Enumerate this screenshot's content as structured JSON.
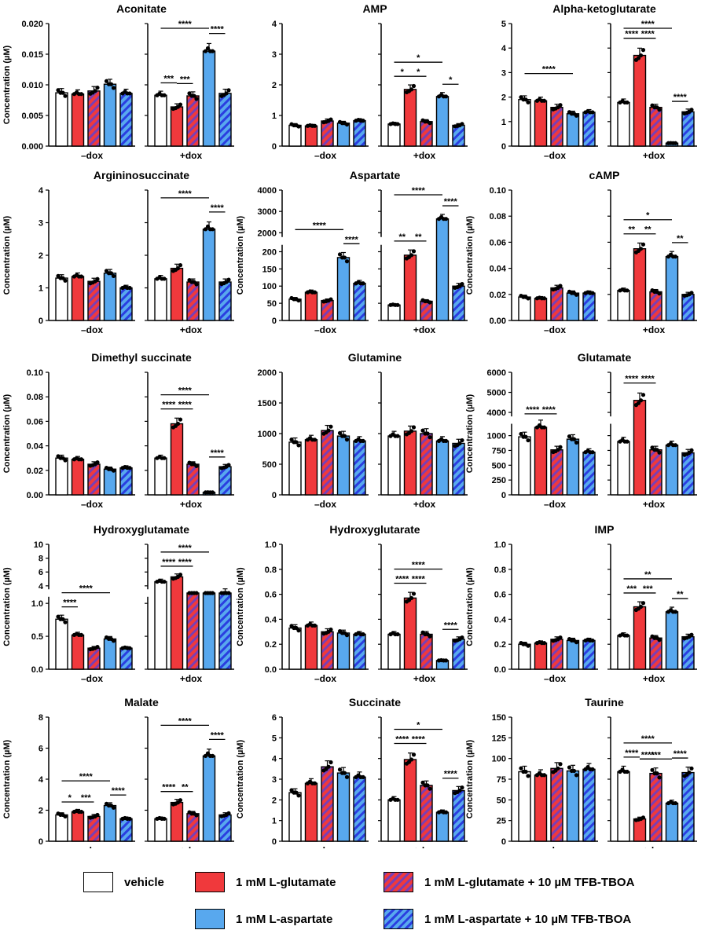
{
  "colors": {
    "vehicle": "#ffffff",
    "glutamate": "#f0393c",
    "aspartate": "#58a8ee",
    "hatch_glu": "#f0393c",
    "hatch_asp": "#58a8ee",
    "hatch_stripe_glu": "#7a3fb4",
    "hatch_stripe_asp": "#2a3ee0"
  },
  "legend": {
    "vehicle": "vehicle",
    "glutamate": "1 mM L-glutamate",
    "glu_tfb": "1 mM L-glutamate + 10 µM TFB-TBOA",
    "aspartate": "1 mM L-aspartate",
    "asp_tfb": "1 mM L-aspartate + 10 µM TFB-TBOA"
  },
  "chart_data": [
    {
      "type": "bar",
      "title": "Aconitate",
      "ylabel": "Concentration (µM)",
      "ylim": [
        0,
        0.02
      ],
      "yticks": [
        "0.000",
        "0.005",
        "0.010",
        "0.015",
        "0.020"
      ],
      "yvals": [
        0,
        0.005,
        0.01,
        0.015,
        0.02
      ],
      "groups": [
        "–dox",
        "+dox"
      ],
      "series": [
        "vehicle",
        "1 mM L-glutamate",
        "1 mM L-glutamate + 10 µM TFB-TBOA",
        "1 mM L-aspartate",
        "1 mM L-aspartate + 10 µM TFB-TBOA"
      ],
      "values": [
        [
          0.0087,
          0.0085,
          0.009,
          0.0101,
          0.0086
        ],
        [
          0.0083,
          0.0064,
          0.0082,
          0.0155,
          0.0086
        ]
      ],
      "sig": [
        {
          "g": 1,
          "a": 0,
          "b": 1,
          "t": "***"
        },
        {
          "g": 1,
          "a": 1,
          "b": 2,
          "t": "***"
        },
        {
          "g": 1,
          "a": 0,
          "b": 3,
          "t": "****"
        },
        {
          "g": 1,
          "a": 3,
          "b": 4,
          "t": "****"
        }
      ]
    },
    {
      "type": "bar",
      "title": "AMP",
      "ylabel": "",
      "ylim": [
        0,
        4
      ],
      "yticks": [
        "0",
        "1",
        "2",
        "3",
        "4"
      ],
      "yvals": [
        0,
        1,
        2,
        3,
        4
      ],
      "groups": [
        "–dox",
        "+dox"
      ],
      "values": [
        [
          0.68,
          0.66,
          0.82,
          0.75,
          0.83
        ],
        [
          0.72,
          1.85,
          0.8,
          1.62,
          0.68
        ]
      ],
      "sig": [
        {
          "g": 1,
          "a": 0,
          "b": 1,
          "t": "*"
        },
        {
          "g": 1,
          "a": 1,
          "b": 2,
          "t": "*"
        },
        {
          "g": 1,
          "a": 0,
          "b": 3,
          "t": "*"
        },
        {
          "g": 1,
          "a": 3,
          "b": 4,
          "t": "*"
        }
      ]
    },
    {
      "type": "bar",
      "title": "Alpha-ketoglutarate",
      "ylabel": "",
      "ylim": [
        0,
        5
      ],
      "yticks": [
        "0",
        "1",
        "2",
        "3",
        "4",
        "5"
      ],
      "yvals": [
        0,
        1,
        2,
        3,
        4,
        5
      ],
      "groups": [
        "–dox",
        "+dox"
      ],
      "values": [
        [
          1.9,
          1.85,
          1.58,
          1.32,
          1.38
        ],
        [
          1.78,
          3.7,
          1.58,
          0.12,
          1.4
        ]
      ],
      "sig": [
        {
          "g": 0,
          "a": 0,
          "b": 3,
          "t": "****"
        },
        {
          "g": 1,
          "a": 0,
          "b": 1,
          "t": "****"
        },
        {
          "g": 1,
          "a": 1,
          "b": 2,
          "t": "****"
        },
        {
          "g": 1,
          "a": 0,
          "b": 3,
          "t": "****"
        },
        {
          "g": 1,
          "a": 3,
          "b": 4,
          "t": "****"
        }
      ]
    },
    {
      "type": "bar",
      "title": "Argininosuccinate",
      "ylabel": "Concentration (µM)",
      "ylim": [
        0,
        4
      ],
      "yticks": [
        "0",
        "1",
        "2",
        "3",
        "4"
      ],
      "yvals": [
        0,
        1,
        2,
        3,
        4
      ],
      "groups": [
        "–dox",
        "+dox"
      ],
      "values": [
        [
          1.3,
          1.35,
          1.2,
          1.45,
          1.0
        ],
        [
          1.28,
          1.6,
          1.18,
          2.8,
          1.18
        ]
      ],
      "sig": [
        {
          "g": 1,
          "a": 0,
          "b": 3,
          "t": "****"
        },
        {
          "g": 1,
          "a": 3,
          "b": 4,
          "t": "****"
        }
      ]
    },
    {
      "type": "bar",
      "title": "Aspartate",
      "ylabel": "Concentration (µM)",
      "ylim": [
        0,
        4000
      ],
      "yticks": [
        "0",
        "50",
        "100",
        "150",
        "200",
        "2000",
        "3000",
        "4000"
      ],
      "yvals": [
        0,
        50,
        100,
        150,
        200,
        2000,
        3000,
        4000
      ],
      "groups": [
        "–dox",
        "+dox"
      ],
      "broken_axis": {
        "low": [
          0,
          220
        ],
        "high": [
          1800,
          4000
        ]
      },
      "values": [
        [
          62,
          82,
          58,
          183,
          108
        ],
        [
          45,
          190,
          56,
          2650,
          100
        ]
      ],
      "sig": [
        {
          "g": 0,
          "a": 0,
          "b": 3,
          "t": "****"
        },
        {
          "g": 0,
          "a": 3,
          "b": 4,
          "t": "****"
        },
        {
          "g": 1,
          "a": 0,
          "b": 1,
          "t": "**"
        },
        {
          "g": 1,
          "a": 1,
          "b": 2,
          "t": "**"
        },
        {
          "g": 1,
          "a": 0,
          "b": 3,
          "t": "****"
        },
        {
          "g": 1,
          "a": 3,
          "b": 4,
          "t": "****"
        }
      ]
    },
    {
      "type": "bar",
      "title": "cAMP",
      "ylabel": "Concentration (µM)",
      "ylim": [
        0,
        0.1
      ],
      "yticks": [
        "0.00",
        "0.02",
        "0.04",
        "0.06",
        "0.08",
        "0.10"
      ],
      "yvals": [
        0,
        0.02,
        0.04,
        0.06,
        0.08,
        0.1
      ],
      "groups": [
        "–dox",
        "+dox"
      ],
      "values": [
        [
          0.018,
          0.017,
          0.025,
          0.021,
          0.021
        ],
        [
          0.023,
          0.055,
          0.022,
          0.049,
          0.02
        ]
      ],
      "sig": [
        {
          "g": 1,
          "a": 0,
          "b": 1,
          "t": "**"
        },
        {
          "g": 1,
          "a": 1,
          "b": 2,
          "t": "**"
        },
        {
          "g": 1,
          "a": 0,
          "b": 3,
          "t": "*"
        },
        {
          "g": 1,
          "a": 3,
          "b": 4,
          "t": "**"
        }
      ]
    },
    {
      "type": "bar",
      "title": "Dimethyl succinate",
      "ylabel": "Concentration (µM)",
      "ylim": [
        0,
        0.1
      ],
      "yticks": [
        "0.00",
        "0.02",
        "0.04",
        "0.06",
        "0.08",
        "0.10"
      ],
      "yvals": [
        0,
        0.02,
        0.04,
        0.06,
        0.08,
        0.1
      ],
      "groups": [
        "–dox",
        "+dox"
      ],
      "values": [
        [
          0.03,
          0.029,
          0.025,
          0.021,
          0.022
        ],
        [
          0.03,
          0.058,
          0.025,
          0.002,
          0.023
        ]
      ],
      "sig": [
        {
          "g": 1,
          "a": 0,
          "b": 1,
          "t": "****"
        },
        {
          "g": 1,
          "a": 1,
          "b": 2,
          "t": "****"
        },
        {
          "g": 1,
          "a": 0,
          "b": 3,
          "t": "****"
        },
        {
          "g": 1,
          "a": 3,
          "b": 4,
          "t": "****"
        }
      ]
    },
    {
      "type": "bar",
      "title": "Glutamine",
      "ylabel": "",
      "ylim": [
        0,
        2000
      ],
      "yticks": [
        "0",
        "500",
        "1000",
        "1500",
        "2000"
      ],
      "yvals": [
        0,
        500,
        1000,
        1500,
        2000
      ],
      "groups": [
        "–dox",
        "+dox"
      ],
      "values": [
        [
          860,
          900,
          1050,
          960,
          880
        ],
        [
          960,
          1040,
          1000,
          880,
          840
        ]
      ],
      "sig": []
    },
    {
      "type": "bar",
      "title": "Glutamate",
      "ylabel": "Concentration (µM)",
      "ylim": [
        0,
        6000
      ],
      "yticks": [
        "0",
        "250",
        "500",
        "750",
        "1000",
        "4000",
        "5000",
        "6000"
      ],
      "yvals": [
        0,
        250,
        500,
        750,
        1000,
        4000,
        5000,
        6000
      ],
      "groups": [
        "–dox",
        "+dox"
      ],
      "broken_axis": {
        "low": [
          0,
          1200
        ],
        "high": [
          3800,
          6000
        ]
      },
      "values": [
        [
          980,
          1140,
          760,
          940,
          720
        ],
        [
          900,
          4600,
          760,
          840,
          710
        ]
      ],
      "sig": [
        {
          "g": 0,
          "a": 0,
          "b": 1,
          "t": "****"
        },
        {
          "g": 0,
          "a": 1,
          "b": 2,
          "t": "****"
        },
        {
          "g": 1,
          "a": 0,
          "b": 1,
          "t": "****"
        },
        {
          "g": 1,
          "a": 1,
          "b": 2,
          "t": "****"
        }
      ]
    },
    {
      "type": "bar",
      "title": "Hydroxyglutamate",
      "ylabel": "Concentration (µM)",
      "ylim": [
        0,
        10
      ],
      "yticks": [
        "0.0",
        "0.5",
        "1.0",
        "4",
        "6",
        "8",
        "10"
      ],
      "yvals": [
        0,
        0.5,
        1,
        4,
        6,
        8,
        10
      ],
      "groups": [
        "–dox",
        "+dox"
      ],
      "broken_axis": {
        "low": [
          0,
          1.1
        ],
        "high": [
          3.5,
          10
        ]
      },
      "values": [
        [
          0.76,
          0.52,
          0.32,
          0.46,
          0.32
        ],
        [
          4.6,
          5.3,
          3.2,
          3.2,
          3.3
        ]
      ],
      "sig": [
        {
          "g": 0,
          "a": 0,
          "b": 1,
          "t": "****"
        },
        {
          "g": 0,
          "a": 0,
          "b": 3,
          "t": "****"
        },
        {
          "g": 1,
          "a": 0,
          "b": 1,
          "t": "****"
        },
        {
          "g": 1,
          "a": 1,
          "b": 2,
          "t": "****"
        },
        {
          "g": 1,
          "a": 0,
          "b": 3,
          "t": "****"
        }
      ]
    },
    {
      "type": "bar",
      "title": "Hydroxyglutarate",
      "ylabel": "Concentration (µM)",
      "ylim": [
        0,
        1
      ],
      "yticks": [
        "0.0",
        "0.2",
        "0.4",
        "0.6",
        "0.8",
        "1.0"
      ],
      "yvals": [
        0,
        0.2,
        0.4,
        0.6,
        0.8,
        1
      ],
      "groups": [
        "–dox",
        "+dox"
      ],
      "values": [
        [
          0.33,
          0.35,
          0.3,
          0.29,
          0.28
        ],
        [
          0.28,
          0.57,
          0.28,
          0.07,
          0.24
        ]
      ],
      "sig": [
        {
          "g": 1,
          "a": 0,
          "b": 1,
          "t": "****"
        },
        {
          "g": 1,
          "a": 1,
          "b": 2,
          "t": "****"
        },
        {
          "g": 1,
          "a": 0,
          "b": 3,
          "t": "****"
        },
        {
          "g": 1,
          "a": 3,
          "b": 4,
          "t": "****"
        }
      ]
    },
    {
      "type": "bar",
      "title": "IMP",
      "ylabel": "Concentration (µM)",
      "ylim": [
        0,
        1
      ],
      "yticks": [
        "0.0",
        "0.2",
        "0.4",
        "0.6",
        "0.8",
        "1.0"
      ],
      "yvals": [
        0,
        0.2,
        0.4,
        0.6,
        0.8,
        1
      ],
      "groups": [
        "–dox",
        "+dox"
      ],
      "values": [
        [
          0.2,
          0.21,
          0.24,
          0.23,
          0.23
        ],
        [
          0.27,
          0.5,
          0.25,
          0.46,
          0.26
        ]
      ],
      "sig": [
        {
          "g": 1,
          "a": 0,
          "b": 1,
          "t": "***"
        },
        {
          "g": 1,
          "a": 1,
          "b": 2,
          "t": "***"
        },
        {
          "g": 1,
          "a": 0,
          "b": 3,
          "t": "**"
        },
        {
          "g": 1,
          "a": 3,
          "b": 4,
          "t": "**"
        }
      ]
    },
    {
      "type": "bar",
      "title": "Malate",
      "ylabel": "Concentration (µM)",
      "ylim": [
        0,
        8
      ],
      "yticks": [
        "0",
        "2",
        "4",
        "6",
        "8"
      ],
      "yvals": [
        0,
        2,
        4,
        6,
        8
      ],
      "groups": [
        "–dox",
        "+dox"
      ],
      "values": [
        [
          1.7,
          1.9,
          1.6,
          2.3,
          1.45
        ],
        [
          1.45,
          2.5,
          1.78,
          5.5,
          1.7
        ]
      ],
      "sig": [
        {
          "g": 0,
          "a": 0,
          "b": 1,
          "t": "*"
        },
        {
          "g": 0,
          "a": 1,
          "b": 2,
          "t": "***"
        },
        {
          "g": 0,
          "a": 0,
          "b": 3,
          "t": "****"
        },
        {
          "g": 0,
          "a": 3,
          "b": 4,
          "t": "****"
        },
        {
          "g": 1,
          "a": 0,
          "b": 1,
          "t": "****"
        },
        {
          "g": 1,
          "a": 1,
          "b": 2,
          "t": "**"
        },
        {
          "g": 1,
          "a": 0,
          "b": 3,
          "t": "****"
        },
        {
          "g": 1,
          "a": 3,
          "b": 4,
          "t": "****"
        }
      ]
    },
    {
      "type": "bar",
      "title": "Succinate",
      "ylabel": "Concentration (µM)",
      "ylim": [
        0,
        6
      ],
      "yticks": [
        "0",
        "1",
        "2",
        "3",
        "4",
        "5",
        "6"
      ],
      "yvals": [
        0,
        1,
        2,
        3,
        4,
        5,
        6
      ],
      "groups": [
        "–dox",
        "+dox"
      ],
      "values": [
        [
          2.35,
          2.8,
          3.6,
          3.3,
          3.1
        ],
        [
          2.0,
          3.95,
          2.7,
          1.4,
          2.45
        ]
      ],
      "sig": [
        {
          "g": 1,
          "a": 0,
          "b": 1,
          "t": "****"
        },
        {
          "g": 1,
          "a": 1,
          "b": 2,
          "t": "****"
        },
        {
          "g": 1,
          "a": 0,
          "b": 3,
          "t": "*"
        },
        {
          "g": 1,
          "a": 3,
          "b": 4,
          "t": "****"
        }
      ]
    },
    {
      "type": "bar",
      "title": "Taurine",
      "ylabel": "Concentration (µM)",
      "ylim": [
        0,
        150
      ],
      "yticks": [
        "0",
        "25",
        "50",
        "75",
        "100",
        "125",
        "150"
      ],
      "yvals": [
        0,
        25,
        50,
        75,
        100,
        125,
        150
      ],
      "groups": [
        "–dox",
        "+dox"
      ],
      "values": [
        [
          84,
          80,
          88,
          85,
          87
        ],
        [
          84,
          27,
          82,
          46,
          83
        ]
      ],
      "sig": [
        {
          "g": 1,
          "a": 0,
          "b": 1,
          "t": "****"
        },
        {
          "g": 1,
          "a": 1,
          "b": 2,
          "t": "****"
        },
        {
          "g": 1,
          "a": 1,
          "b": 3,
          "t": "***"
        },
        {
          "g": 1,
          "a": 0,
          "b": 3,
          "t": "****"
        },
        {
          "g": 1,
          "a": 3,
          "b": 4,
          "t": "****"
        }
      ]
    }
  ]
}
